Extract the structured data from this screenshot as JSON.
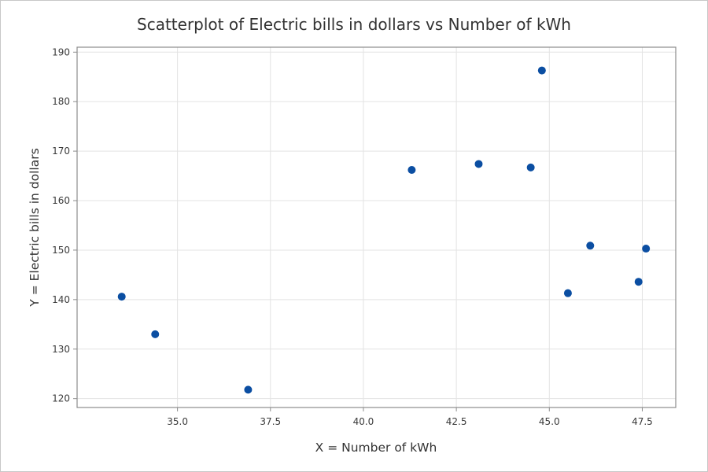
{
  "chart_data": {
    "type": "scatter",
    "title": "Scatterplot of Electric bills in dollars vs Number of kWh",
    "xlabel": "X = Number of kWh",
    "ylabel": "Y = Electric bills in dollars",
    "xlim": [
      32.3,
      48.4
    ],
    "ylim": [
      118.2,
      191
    ],
    "xticks": [
      35.0,
      37.5,
      40.0,
      42.5,
      45.0,
      47.5
    ],
    "xtick_labels": [
      "35.0",
      "37.5",
      "40.0",
      "42.5",
      "45.0",
      "47.5"
    ],
    "yticks": [
      120,
      130,
      140,
      150,
      160,
      170,
      180,
      190
    ],
    "ytick_labels": [
      "120",
      "130",
      "140",
      "150",
      "160",
      "170",
      "180",
      "190"
    ],
    "grid": true,
    "marker_color": "#0b4ea2",
    "points": [
      {
        "x": 33.5,
        "y": 140.6
      },
      {
        "x": 34.4,
        "y": 133.0
      },
      {
        "x": 36.9,
        "y": 121.8
      },
      {
        "x": 41.3,
        "y": 166.2
      },
      {
        "x": 43.1,
        "y": 167.4
      },
      {
        "x": 44.5,
        "y": 166.7
      },
      {
        "x": 44.8,
        "y": 186.3
      },
      {
        "x": 45.5,
        "y": 141.3
      },
      {
        "x": 46.1,
        "y": 150.9
      },
      {
        "x": 47.4,
        "y": 143.6
      },
      {
        "x": 47.6,
        "y": 150.3
      }
    ]
  }
}
